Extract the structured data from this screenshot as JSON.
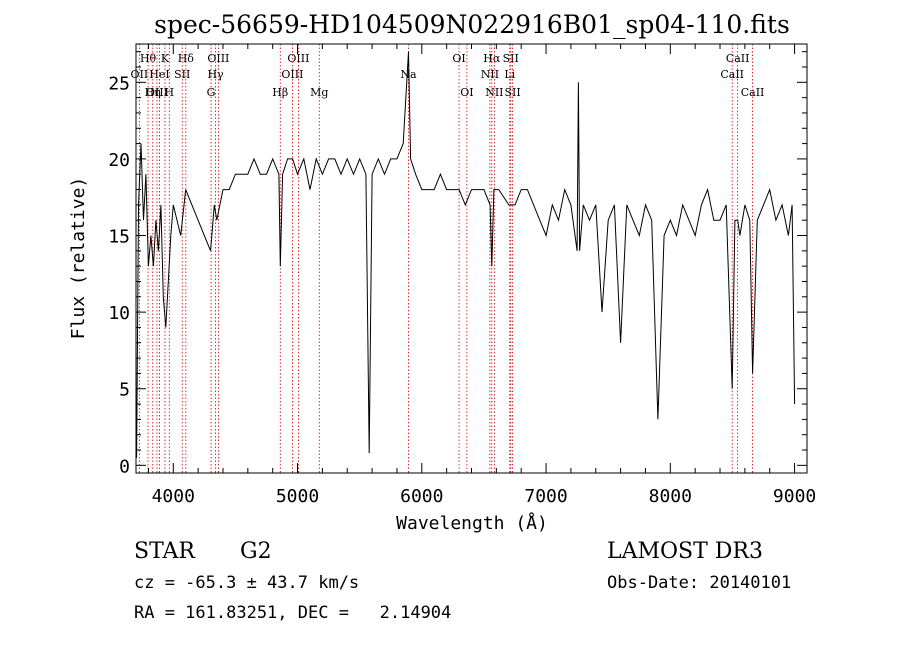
{
  "chart_data": {
    "type": "line",
    "title": "spec-56659-HD104509N022916B01_sp04-110.fits",
    "xlabel": "Wavelength (Å)",
    "ylabel": "Flux (relative)",
    "xlim": [
      3700,
      9100
    ],
    "ylim": [
      -0.5,
      27.5
    ],
    "xticks": [
      4000,
      5000,
      6000,
      7000,
      8000,
      9000
    ],
    "yticks": [
      0,
      5,
      10,
      15,
      20,
      25
    ],
    "grid": false,
    "series": [
      {
        "name": "spectrum",
        "x": [
          3705,
          3720,
          3740,
          3760,
          3780,
          3800,
          3820,
          3840,
          3860,
          3880,
          3900,
          3920,
          3940,
          3960,
          3980,
          4000,
          4030,
          4060,
          4100,
          4150,
          4200,
          4250,
          4300,
          4330,
          4350,
          4400,
          4450,
          4500,
          4550,
          4600,
          4650,
          4700,
          4750,
          4800,
          4850,
          4861,
          4880,
          4920,
          4960,
          5000,
          5050,
          5100,
          5150,
          5200,
          5250,
          5300,
          5350,
          5400,
          5450,
          5500,
          5550,
          5577,
          5600,
          5650,
          5700,
          5750,
          5800,
          5850,
          5893,
          5910,
          5950,
          6000,
          6050,
          6100,
          6150,
          6200,
          6250,
          6300,
          6350,
          6400,
          6450,
          6500,
          6550,
          6563,
          6580,
          6620,
          6700,
          6750,
          6800,
          6850,
          6900,
          6950,
          7000,
          7050,
          7100,
          7150,
          7200,
          7250,
          7260,
          7270,
          7300,
          7350,
          7400,
          7450,
          7500,
          7550,
          7600,
          7650,
          7700,
          7750,
          7800,
          7850,
          7900,
          7950,
          8000,
          8050,
          8100,
          8150,
          8200,
          8250,
          8300,
          8350,
          8400,
          8450,
          8498,
          8520,
          8542,
          8560,
          8600,
          8640,
          8662,
          8700,
          8750,
          8800,
          8850,
          8900,
          8950,
          8980,
          9000
        ],
        "values": [
          0.5,
          17,
          21,
          16,
          19,
          13,
          15,
          13,
          16,
          14,
          17,
          11,
          9,
          12,
          15,
          17,
          16,
          15,
          18,
          17,
          16,
          15,
          14,
          17,
          16,
          18,
          18,
          19,
          19,
          19,
          20,
          19,
          19,
          20,
          19,
          13,
          19,
          20,
          20,
          19,
          20,
          18,
          20,
          19,
          20,
          20,
          19,
          20,
          19,
          20,
          19,
          0.8,
          19,
          20,
          19,
          20,
          20,
          21,
          27,
          20,
          19,
          18,
          18,
          18,
          19,
          18,
          18,
          18,
          17,
          18,
          18,
          18,
          17,
          13,
          18,
          18,
          17,
          17,
          18,
          18,
          17,
          16,
          15,
          17,
          16,
          18,
          17,
          14,
          25,
          14,
          17,
          16,
          17,
          10,
          16,
          17,
          8,
          17,
          16,
          15,
          17,
          16,
          3,
          15,
          16,
          15,
          17,
          16,
          15,
          17,
          18,
          16,
          16,
          17,
          5,
          16,
          16,
          15,
          17,
          16,
          6,
          16,
          17,
          18,
          16,
          17,
          15,
          17,
          4
        ]
      }
    ],
    "line_markers": [
      {
        "label": "Hθ",
        "x": 3797,
        "row": 1
      },
      {
        "label": "K",
        "x": 3933,
        "row": 1
      },
      {
        "label": "Hδ",
        "x": 4101,
        "row": 1
      },
      {
        "label": "OIII",
        "x": 4363,
        "row": 1
      },
      {
        "label": "OIII",
        "x": 5007,
        "row": 1
      },
      {
        "label": "OI",
        "x": 6300,
        "row": 1
      },
      {
        "label": "Hα",
        "x": 6563,
        "row": 1
      },
      {
        "label": "SII",
        "x": 6716,
        "row": 1
      },
      {
        "label": "CaII",
        "x": 8542,
        "row": 1
      },
      {
        "label": "OII",
        "x": 3727,
        "row": 2
      },
      {
        "label": "HeI",
        "x": 3889,
        "row": 2
      },
      {
        "label": "SII",
        "x": 4072,
        "row": 2
      },
      {
        "label": "Hγ",
        "x": 4340,
        "row": 2
      },
      {
        "label": "OIII",
        "x": 4959,
        "row": 2
      },
      {
        "label": "Na",
        "x": 5893,
        "row": 2
      },
      {
        "label": "NII",
        "x": 6548,
        "row": 2
      },
      {
        "label": "Li",
        "x": 6708,
        "row": 2
      },
      {
        "label": "CaII",
        "x": 8498,
        "row": 2
      },
      {
        "label": "OIII",
        "x": 3869,
        "row": 3
      },
      {
        "label": "Hη",
        "x": 3835,
        "row": 3
      },
      {
        "label": "H",
        "x": 3968,
        "row": 3
      },
      {
        "label": "G",
        "x": 4304,
        "row": 3
      },
      {
        "label": "Hβ",
        "x": 4861,
        "row": 3
      },
      {
        "label": "Mg",
        "x": 5175,
        "row": 3
      },
      {
        "label": "OI",
        "x": 6363,
        "row": 3
      },
      {
        "label": "NII",
        "x": 6584,
        "row": 3
      },
      {
        "label": "SII",
        "x": 6731,
        "row": 3
      },
      {
        "label": "CaII",
        "x": 8662,
        "row": 3
      }
    ],
    "colors": {
      "line": "#000000",
      "marker": "#cc0000"
    }
  },
  "info": {
    "class_label": "STAR",
    "subclass": "G2",
    "cz_line": "cz = -65.3 ± 43.7 km/s",
    "radec_line": "RA = 161.83251, DEC =   2.14904",
    "survey": "LAMOST DR3",
    "obs_date_line": "Obs-Date: 20140101"
  }
}
